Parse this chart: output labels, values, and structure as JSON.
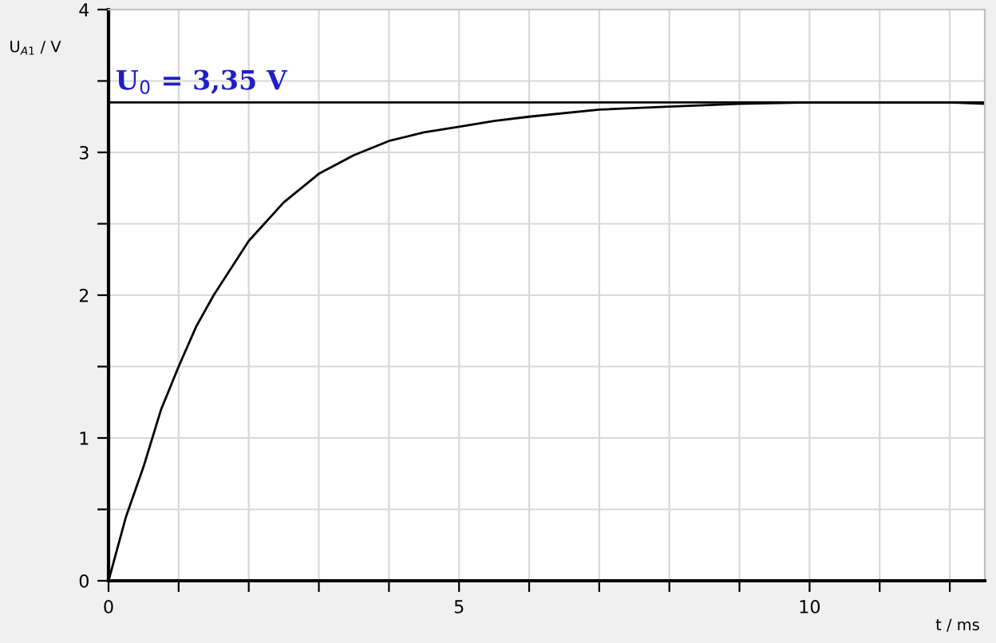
{
  "chart_data": {
    "type": "line",
    "xlabel": "t / ms",
    "ylabel": "U$_{A1}$ / V",
    "x": [
      0,
      0.25,
      0.5,
      0.75,
      1,
      1.25,
      1.5,
      2,
      2.5,
      3,
      3.5,
      4,
      4.5,
      5,
      5.5,
      6,
      7,
      8,
      9,
      10,
      11,
      12,
      12.5
    ],
    "series": [
      {
        "color": "#000000",
        "values": [
          0,
          0.45,
          0.8,
          1.2,
          1.5,
          1.78,
          2.0,
          2.38,
          2.65,
          2.85,
          2.98,
          3.08,
          3.14,
          3.18,
          3.22,
          3.25,
          3.3,
          3.32,
          3.34,
          3.35,
          3.35,
          3.35,
          3.34
        ]
      }
    ],
    "xlim": [
      0,
      12.5
    ],
    "ylim": [
      0,
      4
    ],
    "xticks": [
      0,
      {
        "value": 1,
        "label": null
      },
      {
        "value": 2,
        "label": null
      },
      {
        "value": 3,
        "label": null
      },
      {
        "value": 4,
        "label": null
      },
      5,
      {
        "value": 6,
        "label": null
      },
      {
        "value": 7,
        "label": null
      },
      {
        "value": 8,
        "label": null
      },
      {
        "value": 9,
        "label": null
      },
      10,
      {
        "value": 11,
        "label": null
      },
      {
        "value": 12,
        "label": null
      }
    ],
    "yticks": [
      0,
      {
        "value": 0.5,
        "label": null
      },
      1,
      {
        "value": 1.5,
        "label": null
      },
      2,
      {
        "value": 2.5,
        "label": null
      },
      3,
      {
        "value": 3.5,
        "label": null
      },
      4
    ],
    "ref_lines": [
      {
        "axis": "y",
        "value": 3.35,
        "label": "U$_{0}$ = 3,35 V",
        "color": "#000000"
      }
    ],
    "grid": true,
    "marker": "none",
    "line_style": "solid",
    "legend": false
  }
}
